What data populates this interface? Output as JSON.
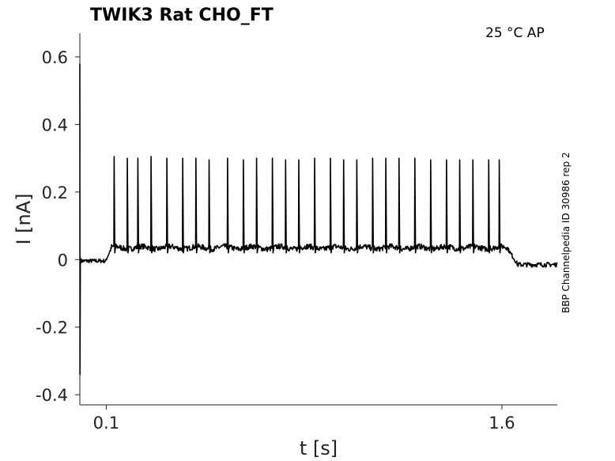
{
  "chart_data": {
    "type": "line",
    "title": "TWIK3  Rat  CHO_FT",
    "corner_label": "25 °C  AP",
    "side_label": "BBP Channelpedia ID 30986 rep 2",
    "xlabel": "t [s]",
    "ylabel": "I [nA]",
    "xlim": [
      0.0,
      1.81
    ],
    "ylim": [
      -0.43,
      0.67
    ],
    "x_ticks": [
      0.1,
      1.6
    ],
    "x_tick_labels": [
      "0.1",
      "1.6"
    ],
    "y_ticks": [
      0.6,
      0.4,
      0.2,
      0,
      -0.2,
      -0.4
    ],
    "y_tick_labels": [
      "0.6",
      "0.4",
      "0.2",
      "0",
      "-0.2",
      "-0.4"
    ],
    "grid": false,
    "legend": false,
    "series": [
      {
        "color": "#000000",
        "baseline_before": 0.0,
        "baseline_during": 0.035,
        "baseline_after": -0.015,
        "stim_start": 0.1,
        "stim_end": 1.62,
        "spike_times": [
          0.13,
          0.18,
          0.22,
          0.27,
          0.33,
          0.39,
          0.44,
          0.49,
          0.56,
          0.62,
          0.67,
          0.73,
          0.78,
          0.83,
          0.89,
          0.95,
          1.0,
          1.05,
          1.11,
          1.16,
          1.21,
          1.27,
          1.33,
          1.39,
          1.44,
          1.49,
          1.55,
          1.59
        ],
        "spike_peaks": [
          0.305,
          0.3,
          0.3,
          0.305,
          0.3,
          0.3,
          0.3,
          0.295,
          0.3,
          0.295,
          0.3,
          0.3,
          0.295,
          0.295,
          0.3,
          0.3,
          0.295,
          0.295,
          0.3,
          0.3,
          0.3,
          0.3,
          0.295,
          0.295,
          0.295,
          0.295,
          0.295,
          0.295
        ],
        "transient_max": 0.58,
        "transient_min": -0.34
      }
    ]
  }
}
